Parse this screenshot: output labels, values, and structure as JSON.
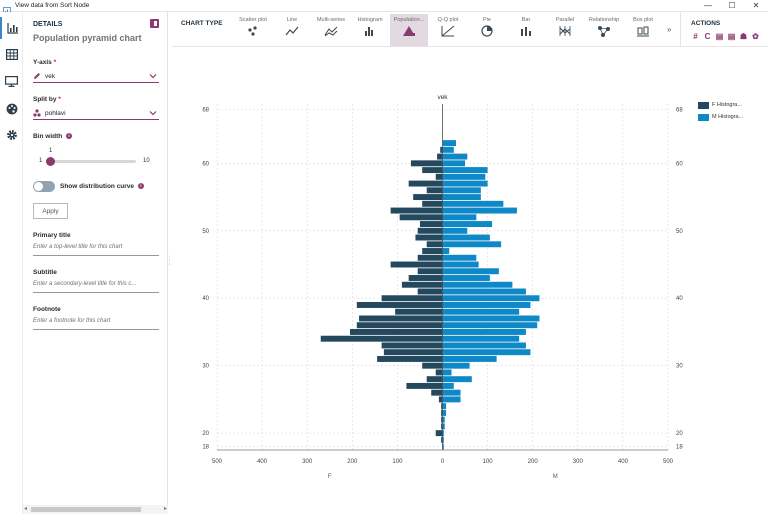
{
  "window": {
    "title": "View data from Sort Node",
    "controls": [
      "—",
      "☐",
      "✕"
    ]
  },
  "sidebar_icons": [
    "chart-icon",
    "table-icon",
    "monitor-icon",
    "palette-icon",
    "gear-icon"
  ],
  "details": {
    "heading": "DETAILS",
    "chart_name": "Population pyramid chart",
    "y_axis": {
      "label": "Y-axis",
      "required": "*",
      "value": "vek"
    },
    "split_by": {
      "label": "Split by",
      "required": "*",
      "value": "pohlavi"
    },
    "bin_width": {
      "label": "Bin width",
      "value": "1",
      "min": "1",
      "max": "10",
      "value_fraction": 0.0
    },
    "show_distribution": {
      "label": "Show distribution curve",
      "on": false
    },
    "apply_label": "Apply",
    "primary_title": {
      "label": "Primary title",
      "placeholder": "Enter a top-level title for this chart"
    },
    "subtitle": {
      "label": "Subtitle",
      "placeholder": "Enter a secondary-level title for this c..."
    },
    "footnote": {
      "label": "Footnote",
      "placeholder": "Enter a footnote for this chart"
    }
  },
  "toolbar": {
    "label": "CHART TYPE",
    "items": [
      {
        "name": "Scatter plot",
        "icon": "scatter-icon",
        "active": false
      },
      {
        "name": "Line",
        "icon": "line-icon",
        "active": false
      },
      {
        "name": "Multi-series",
        "icon": "multi-series-icon",
        "active": false
      },
      {
        "name": "Histogram",
        "icon": "histogram-icon",
        "active": false
      },
      {
        "name": "Population...",
        "icon": "population-icon",
        "active": true
      },
      {
        "name": "Q-Q plot",
        "icon": "qq-icon",
        "active": false
      },
      {
        "name": "Pie",
        "icon": "pie-icon",
        "active": false
      },
      {
        "name": "Bar",
        "icon": "bar-icon",
        "active": false
      },
      {
        "name": "Parallel",
        "icon": "parallel-icon",
        "active": false
      },
      {
        "name": "Relationship",
        "icon": "relationship-icon",
        "active": false
      },
      {
        "name": "Box plot",
        "icon": "boxplot-icon",
        "active": false
      }
    ],
    "more": "»",
    "actions_label": "ACTIONS",
    "actions": [
      "#",
      "C",
      "▤",
      "▤",
      "☗",
      "✿"
    ]
  },
  "colors": {
    "accent": "#8b3a70",
    "female": "#24495f",
    "male": "#0f88c8",
    "grid": "#d9d9d9"
  },
  "chart_data": {
    "type": "bar",
    "title": "vek",
    "orientation": "horizontal-pyramid",
    "xlim": [
      -500,
      500
    ],
    "x_ticks": [
      "500",
      "400",
      "300",
      "200",
      "100",
      "0",
      "100",
      "200",
      "300",
      "400",
      "500"
    ],
    "y_ticks": [
      "68",
      "60",
      "50",
      "40",
      "30",
      "20",
      "18"
    ],
    "x_side_labels": [
      "F",
      "M"
    ],
    "legend_placement": "top-right",
    "ages": [
      68,
      67,
      66,
      65,
      64,
      63,
      62,
      61,
      60,
      59,
      58,
      57,
      56,
      55,
      54,
      53,
      52,
      51,
      50,
      49,
      48,
      47,
      46,
      45,
      44,
      43,
      42,
      41,
      40,
      39,
      38,
      37,
      36,
      35,
      34,
      33,
      32,
      31,
      30,
      29,
      28,
      27,
      26,
      25,
      24,
      23,
      22,
      21,
      20,
      19,
      18
    ],
    "series": [
      {
        "name": "F Histogra...",
        "values": [
          0,
          0,
          0,
          0,
          0,
          0,
          5,
          12,
          70,
          45,
          15,
          75,
          35,
          65,
          45,
          115,
          95,
          50,
          55,
          60,
          35,
          45,
          55,
          115,
          55,
          75,
          90,
          55,
          135,
          190,
          105,
          185,
          190,
          205,
          270,
          135,
          130,
          145,
          45,
          15,
          35,
          80,
          25,
          8,
          3,
          3,
          3,
          3,
          15,
          3,
          0
        ]
      },
      {
        "name": "M Histogra...",
        "values": [
          0,
          0,
          0,
          0,
          0,
          30,
          25,
          55,
          50,
          100,
          95,
          100,
          85,
          85,
          135,
          165,
          75,
          110,
          55,
          105,
          130,
          15,
          75,
          80,
          125,
          105,
          155,
          185,
          215,
          195,
          170,
          215,
          210,
          185,
          170,
          185,
          195,
          120,
          60,
          20,
          65,
          25,
          40,
          40,
          8,
          8,
          5,
          5,
          3,
          3,
          3
        ]
      }
    ]
  }
}
